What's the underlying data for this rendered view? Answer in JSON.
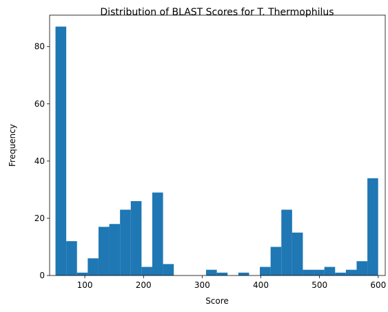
{
  "chart_data": {
    "type": "bar",
    "title": "Distribution of BLAST Scores for T. Thermophilus",
    "xlabel": "Score",
    "ylabel": "Frequency",
    "xlim": [
      40,
      612
    ],
    "ylim": [
      0,
      91
    ],
    "x_ticks": [
      100,
      200,
      300,
      400,
      500,
      600
    ],
    "y_ticks": [
      0,
      20,
      40,
      60,
      80
    ],
    "bin_start": 50,
    "bin_width": 18.33,
    "values": [
      87,
      12,
      1,
      6,
      17,
      18,
      23,
      26,
      3,
      29,
      4,
      0,
      0,
      0,
      2,
      1,
      0,
      1,
      0,
      3,
      10,
      23,
      15,
      2,
      2,
      3,
      1,
      2,
      5,
      34
    ],
    "bar_color": "#1f77b4",
    "grid": false
  }
}
